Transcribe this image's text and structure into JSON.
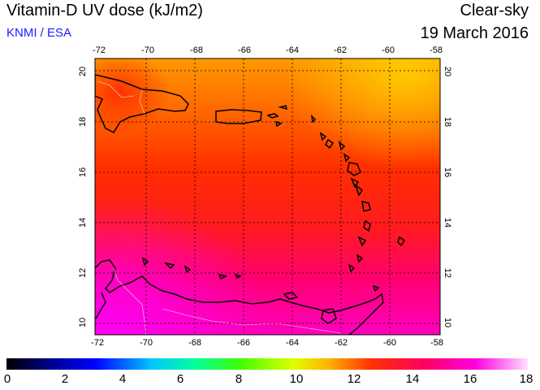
{
  "header": {
    "title": "Vitamin-D UV dose (kJ/m2)",
    "credit": "KNMI / ESA",
    "condition": "Clear-sky",
    "date": "19 March 2016"
  },
  "map": {
    "lon_ticks": [
      "-72",
      "-70",
      "-68",
      "-66",
      "-64",
      "-62",
      "-60",
      "-58"
    ],
    "lat_ticks": [
      "20",
      "18",
      "16",
      "14",
      "12",
      "10"
    ],
    "lon_range": [
      -72,
      -58
    ],
    "lat_range": [
      9.5,
      20.5
    ],
    "field_colors": {
      "low_north": "#ff8c00",
      "mid": "#ff2a00",
      "high_south": "#ff00a0"
    }
  },
  "colorbar": {
    "ticks": [
      "0",
      "2",
      "4",
      "6",
      "8",
      "10",
      "12",
      "14",
      "16",
      "18"
    ],
    "range": [
      0,
      18
    ]
  }
}
